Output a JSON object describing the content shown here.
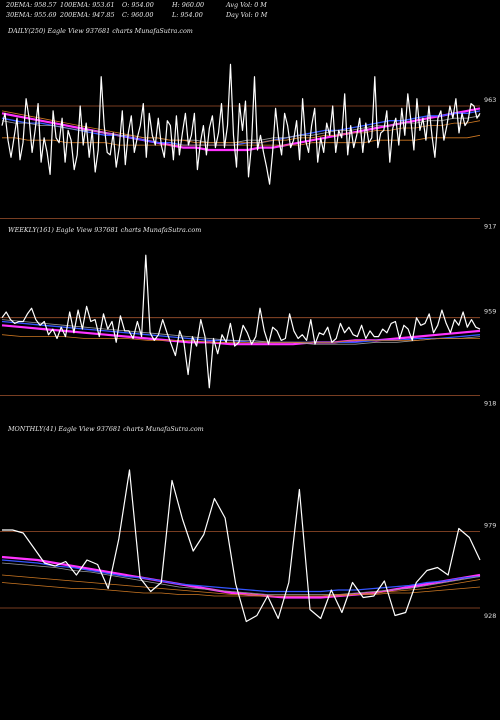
{
  "header": {
    "row1": [
      "20EMA: 958.57",
      "100EMA: 953.61",
      "O: 954.00",
      "H: 960.00",
      "Avg Vol: 0  M"
    ],
    "row2": [
      "30EMA: 955.69",
      "200EMA: 947.85",
      "C: 960.00",
      "L: 954.00",
      "Day Vol: 0  M"
    ]
  },
  "colors": {
    "background": "#000000",
    "price": "#ffffff",
    "ema_magenta": "#ff33ff",
    "ema_blue": "#3355ff",
    "ema_orange": "#cc7722",
    "ema_grey": "#999999",
    "ref_line": "#a0522d"
  },
  "chart_data": [
    {
      "type": "line",
      "title": "DAILY(250) Eagle  View  937681 charts MunafaSutra.com",
      "ylim": [
        900,
        990
      ],
      "yticks": [
        963,
        917
      ],
      "ref_lines": [
        963,
        917
      ],
      "series": [
        {
          "values": [
            955,
            960,
            949,
            942,
            950,
            958,
            941,
            948,
            966,
            958,
            944,
            953,
            964,
            940,
            950,
            944,
            935,
            961,
            950,
            948,
            958,
            940,
            953,
            949,
            937,
            943,
            963,
            947,
            956,
            942,
            953,
            936,
            945,
            975,
            955,
            944,
            943,
            952,
            938,
            946,
            961,
            939,
            952,
            959,
            944,
            950,
            955,
            964,
            942,
            960,
            951,
            947,
            958,
            947,
            942,
            957,
            955,
            941,
            959,
            943,
            952,
            960,
            947,
            951,
            960,
            937,
            948,
            955,
            943,
            954,
            959,
            946,
            952,
            964,
            946,
            955,
            980,
            951,
            938,
            964,
            953,
            965,
            934,
            947,
            975,
            945,
            951,
            944,
            938,
            931,
            944,
            962,
            950,
            943,
            960,
            955,
            946,
            949,
            957,
            941,
            966,
            949,
            944,
            955,
            962,
            940,
            950,
            944,
            956,
            951,
            963,
            944,
            953,
            950,
            968,
            943,
            955,
            946,
            951,
            958,
            944,
            956,
            948,
            950,
            975,
            946,
            952,
            953,
            961,
            940,
            954,
            958,
            947,
            962,
            951,
            968,
            957,
            945,
            966,
            953,
            958,
            949,
            963,
            951,
            942,
            958,
            961,
            949,
            955,
            963,
            958,
            966,
            952,
            960,
            955,
            957,
            964,
            963,
            958,
            960
          ]
        },
        {
          "values": [
            960,
            959,
            958,
            957,
            956,
            955,
            954,
            953,
            952,
            951,
            950,
            949,
            948,
            947,
            946,
            946,
            945,
            945,
            945,
            945,
            946,
            946,
            947,
            948,
            949,
            950,
            951,
            952,
            953,
            954,
            955,
            956,
            957,
            958,
            959,
            960,
            961,
            962
          ]
        },
        {
          "values": [
            958,
            957,
            956,
            956,
            955,
            954,
            953,
            952,
            951,
            951,
            950,
            949,
            948,
            948,
            947,
            947,
            947,
            947,
            947,
            948,
            948,
            949,
            950,
            951,
            952,
            953,
            953,
            954,
            955,
            956,
            957,
            957,
            958,
            959,
            959,
            960,
            960,
            961
          ]
        },
        {
          "values": [
            957,
            956,
            956,
            955,
            955,
            954,
            953,
            953,
            952,
            951,
            951,
            950,
            950,
            949,
            949,
            949,
            948,
            948,
            948,
            949,
            949,
            950,
            950,
            951,
            951,
            952,
            953,
            953,
            954,
            955,
            955,
            956,
            956,
            957,
            957,
            958,
            958,
            959
          ]
        },
        {
          "values": [
            961,
            960,
            959,
            958,
            957,
            956,
            955,
            954,
            953,
            952,
            951,
            950,
            950,
            949,
            949,
            948,
            948,
            948,
            948,
            948,
            948,
            949,
            949,
            950,
            950,
            951,
            951,
            952,
            952,
            953,
            953,
            954,
            954,
            955,
            955,
            956,
            956,
            957
          ]
        },
        {
          "values": [
            950,
            950,
            949,
            949,
            949,
            948,
            948,
            948,
            948,
            947,
            947,
            947,
            947,
            947,
            947,
            947,
            947,
            947,
            947,
            947,
            947,
            947,
            947,
            947,
            948,
            948,
            948,
            948,
            948,
            949,
            949,
            949,
            949,
            950,
            950,
            950,
            950,
            951
          ]
        }
      ]
    },
    {
      "type": "line",
      "title": "WEEKLY(161) Eagle  View  937681 charts MunafaSutra.com",
      "ylim": [
        905,
        1000
      ],
      "yticks": [
        959,
        918
      ],
      "ref_lines": [
        959,
        918
      ],
      "series": [
        {
          "values": [
            959,
            962,
            958,
            956,
            957,
            957,
            961,
            964,
            958,
            955,
            957,
            950,
            953,
            948,
            954,
            949,
            962,
            951,
            963,
            953,
            965,
            957,
            958,
            949,
            961,
            953,
            957,
            946,
            960,
            952,
            952,
            948,
            957,
            949,
            992,
            951,
            947,
            950,
            958,
            951,
            945,
            939,
            952,
            946,
            929,
            949,
            944,
            958,
            949,
            922,
            948,
            940,
            950,
            946,
            956,
            944,
            946,
            955,
            951,
            945,
            949,
            964,
            952,
            945,
            954,
            952,
            947,
            948,
            961,
            952,
            948,
            950,
            947,
            958,
            945,
            951,
            950,
            954,
            946,
            948,
            956,
            951,
            954,
            950,
            949,
            955,
            948,
            952,
            949,
            949,
            953,
            951,
            956,
            957,
            948,
            955,
            953,
            947,
            959,
            955,
            956,
            961,
            951,
            955,
            963,
            956,
            951,
            958,
            955,
            962,
            954,
            958,
            954,
            953
          ]
        },
        {
          "values": [
            955,
            954,
            953,
            952,
            951,
            950,
            949,
            948,
            947,
            946,
            946,
            945,
            945,
            945,
            945,
            946,
            946,
            947,
            947,
            948,
            949,
            950,
            951,
            952
          ]
        },
        {
          "values": [
            957,
            956,
            955,
            954,
            953,
            952,
            951,
            950,
            949,
            948,
            947,
            947,
            946,
            946,
            946,
            946,
            946,
            946,
            947,
            947,
            948,
            948,
            949,
            950
          ]
        },
        {
          "values": [
            958,
            957,
            956,
            955,
            954,
            953,
            952,
            951,
            950,
            949,
            948,
            947,
            947,
            946,
            946,
            945,
            945,
            945,
            946,
            946,
            947,
            948,
            948,
            949
          ]
        },
        {
          "values": [
            950,
            949,
            949,
            949,
            948,
            948,
            948,
            947,
            947,
            947,
            946,
            946,
            946,
            946,
            946,
            946,
            946,
            947,
            947,
            947,
            947,
            948,
            948,
            948
          ]
        }
      ]
    },
    {
      "type": "line",
      "title": "MONTHLY(41) Eagle  View  937681 charts MunafaSutra.com",
      "ylim": [
        880,
        1040
      ],
      "yticks": [
        979,
        928
      ],
      "ref_lines": [
        979,
        928
      ],
      "series": [
        {
          "values": [
            980,
            980,
            978,
            968,
            958,
            956,
            959,
            950,
            960,
            957,
            941,
            974,
            1020,
            948,
            939,
            945,
            1013,
            987,
            966,
            977,
            1001,
            988,
            944,
            919,
            923,
            936,
            921,
            945,
            1007,
            927,
            921,
            940,
            925,
            945,
            935,
            936,
            946,
            923,
            925,
            945,
            953,
            955,
            950,
            981,
            975,
            960
          ]
        },
        {
          "values": [
            962,
            961,
            960,
            958,
            956,
            954,
            952,
            950,
            948,
            946,
            944,
            942,
            940,
            938,
            937,
            936,
            935,
            935,
            935,
            936,
            937,
            938,
            940,
            942,
            944,
            946,
            948,
            950
          ]
        },
        {
          "values": [
            960,
            959,
            958,
            956,
            955,
            953,
            951,
            949,
            948,
            946,
            944,
            943,
            942,
            941,
            940,
            939,
            939,
            939,
            939,
            940,
            940,
            941,
            942,
            943,
            945,
            946,
            948,
            949
          ]
        },
        {
          "values": [
            958,
            957,
            956,
            955,
            953,
            952,
            950,
            948,
            946,
            944,
            942,
            941,
            940,
            939,
            938,
            937,
            937,
            937,
            937,
            937,
            938,
            939,
            940,
            941,
            943,
            945,
            947,
            949
          ]
        },
        {
          "values": [
            950,
            949,
            948,
            947,
            946,
            945,
            944,
            943,
            942,
            941,
            940,
            939,
            938,
            937,
            937,
            936,
            936,
            936,
            936,
            937,
            937,
            938,
            939,
            940,
            941,
            943,
            945,
            947
          ]
        },
        {
          "values": [
            945,
            944,
            943,
            942,
            941,
            941,
            940,
            939,
            938,
            938,
            937,
            937,
            936,
            936,
            936,
            936,
            936,
            936,
            936,
            936,
            937,
            937,
            938,
            938,
            939,
            940,
            941,
            942
          ]
        }
      ]
    }
  ]
}
